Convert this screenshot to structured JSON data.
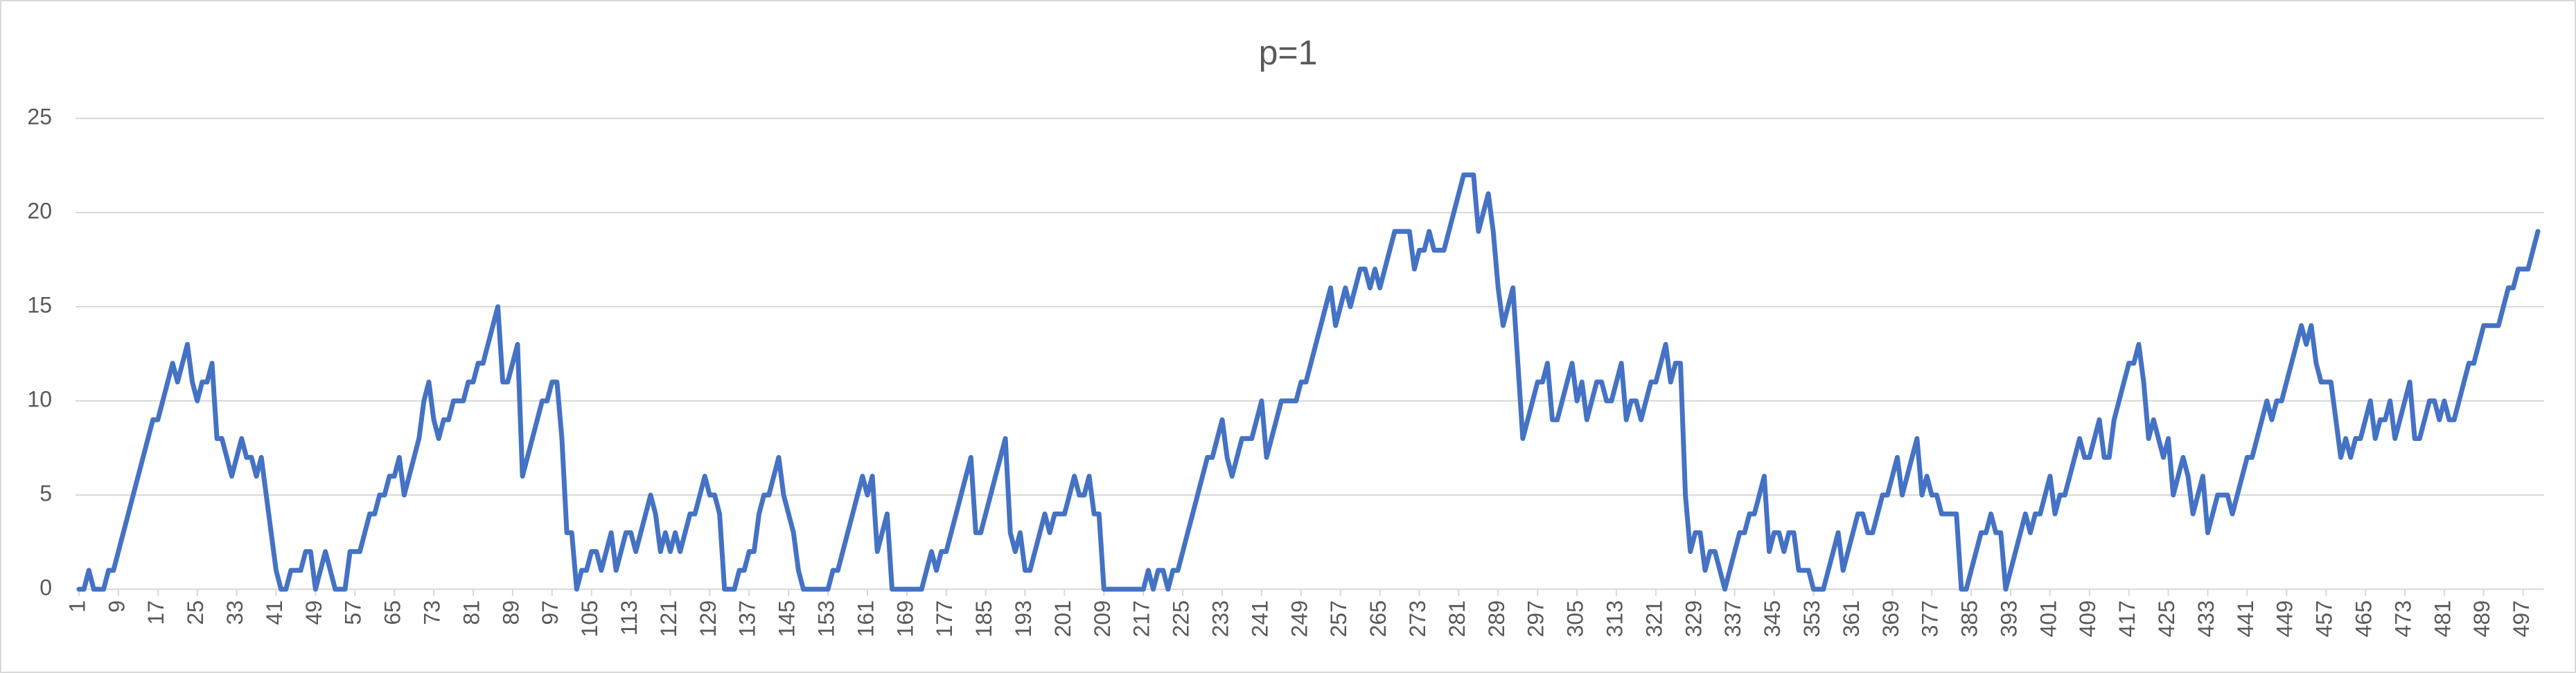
{
  "chart_data": {
    "type": "line",
    "title": "p=1",
    "x": [
      1,
      2,
      3,
      4,
      5,
      6,
      7,
      8,
      9,
      10,
      11,
      12,
      13,
      14,
      15,
      16,
      17,
      18,
      19,
      20,
      21,
      22,
      23,
      24,
      25,
      26,
      27,
      28,
      29,
      30,
      31,
      32,
      33,
      34,
      35,
      36,
      37,
      38,
      39,
      40,
      41,
      42,
      43,
      44,
      45,
      46,
      47,
      48,
      49,
      50,
      51,
      52,
      53,
      54,
      55,
      56,
      57,
      58,
      59,
      60,
      61,
      62,
      63,
      64,
      65,
      66,
      67,
      68,
      69,
      70,
      71,
      72,
      73,
      74,
      75,
      76,
      77,
      78,
      79,
      80,
      81,
      82,
      83,
      84,
      85,
      86,
      87,
      88,
      89,
      90,
      91,
      92,
      93,
      94,
      95,
      96,
      97,
      98,
      99,
      100,
      101,
      102,
      103,
      104,
      105,
      106,
      107,
      108,
      109,
      110,
      111,
      112,
      113,
      114,
      115,
      116,
      117,
      118,
      119,
      120,
      121,
      122,
      123,
      124,
      125,
      126,
      127,
      128,
      129,
      130,
      131,
      132,
      133,
      134,
      135,
      136,
      137,
      138,
      139,
      140,
      141,
      142,
      143,
      144,
      145,
      146,
      147,
      148,
      149,
      150,
      151,
      152,
      153,
      154,
      155,
      156,
      157,
      158,
      159,
      160,
      161,
      162,
      163,
      164,
      165,
      166,
      167,
      168,
      169,
      170,
      171,
      172,
      173,
      174,
      175,
      176,
      177,
      178,
      179,
      180,
      181,
      182,
      183,
      184,
      185,
      186,
      187,
      188,
      189,
      190,
      191,
      192,
      193,
      194,
      195,
      196,
      197,
      198,
      199,
      200,
      201,
      202,
      203,
      204,
      205,
      206,
      207,
      208,
      209,
      210,
      211,
      212,
      213,
      214,
      215,
      216,
      217,
      218,
      219,
      220,
      221,
      222,
      223,
      224,
      225,
      226,
      227,
      228,
      229,
      230,
      231,
      232,
      233,
      234,
      235,
      236,
      237,
      238,
      239,
      240,
      241,
      242,
      243,
      244,
      245,
      246,
      247,
      248,
      249,
      250,
      251,
      252,
      253,
      254,
      255,
      256,
      257,
      258,
      259,
      260,
      261,
      262,
      263,
      264,
      265,
      266,
      267,
      268,
      269,
      270,
      271,
      272,
      273,
      274,
      275,
      276,
      277,
      278,
      279,
      280,
      281,
      282,
      283,
      284,
      285,
      286,
      287,
      288,
      289,
      290,
      291,
      292,
      293,
      294,
      295,
      296,
      297,
      298,
      299,
      300,
      301,
      302,
      303,
      304,
      305,
      306,
      307,
      308,
      309,
      310,
      311,
      312,
      313,
      314,
      315,
      316,
      317,
      318,
      319,
      320,
      321,
      322,
      323,
      324,
      325,
      326,
      327,
      328,
      329,
      330,
      331,
      332,
      333,
      334,
      335,
      336,
      337,
      338,
      339,
      340,
      341,
      342,
      343,
      344,
      345,
      346,
      347,
      348,
      349,
      350,
      351,
      352,
      353,
      354,
      355,
      356,
      357,
      358,
      359,
      360,
      361,
      362,
      363,
      364,
      365,
      366,
      367,
      368,
      369,
      370,
      371,
      372,
      373,
      374,
      375,
      376,
      377,
      378,
      379,
      380,
      381,
      382,
      383,
      384,
      385,
      386,
      387,
      388,
      389,
      390,
      391,
      392,
      393,
      394,
      395,
      396,
      397,
      398,
      399,
      400,
      401,
      402,
      403,
      404,
      405,
      406,
      407,
      408,
      409,
      410,
      411,
      412,
      413,
      414,
      415,
      416,
      417,
      418,
      419,
      420,
      421,
      422,
      423,
      424,
      425,
      426,
      427,
      428,
      429,
      430,
      431,
      432,
      433,
      434,
      435,
      436,
      437,
      438,
      439,
      440,
      441,
      442,
      443,
      444,
      445,
      446,
      447,
      448,
      449,
      450,
      451,
      452,
      453,
      454,
      455,
      456,
      457,
      458,
      459,
      460,
      461,
      462,
      463,
      464,
      465,
      466,
      467,
      468,
      469,
      470,
      471,
      472,
      473,
      474,
      475,
      476,
      477,
      478,
      479,
      480,
      481,
      482,
      483,
      484,
      485,
      486,
      487,
      488,
      489,
      490,
      491,
      492,
      493,
      494,
      495,
      496,
      497,
      498,
      499,
      500
    ],
    "values": [
      0,
      0,
      1,
      0,
      0,
      0,
      1,
      1,
      2,
      3,
      4,
      5,
      6,
      7,
      8,
      9,
      9,
      10,
      11,
      12,
      11,
      12,
      13,
      11,
      10,
      11,
      11,
      12,
      8,
      8,
      7,
      6,
      7,
      8,
      7,
      7,
      6,
      7,
      5,
      3,
      1,
      0,
      0,
      1,
      1,
      1,
      2,
      2,
      0,
      1,
      2,
      1,
      0,
      0,
      0,
      2,
      2,
      2,
      3,
      4,
      4,
      5,
      5,
      6,
      6,
      7,
      5,
      6,
      7,
      8,
      10,
      11,
      9,
      8,
      9,
      9,
      10,
      10,
      10,
      11,
      11,
      12,
      12,
      13,
      14,
      15,
      11,
      11,
      12,
      13,
      6,
      7,
      8,
      9,
      10,
      10,
      11,
      11,
      8,
      3,
      3,
      0,
      1,
      1,
      2,
      2,
      1,
      2,
      3,
      1,
      2,
      3,
      3,
      2,
      3,
      4,
      5,
      4,
      2,
      3,
      2,
      3,
      2,
      3,
      4,
      4,
      5,
      6,
      5,
      5,
      4,
      0,
      0,
      0,
      1,
      1,
      2,
      2,
      4,
      5,
      5,
      6,
      7,
      5,
      4,
      3,
      1,
      0,
      0,
      0,
      0,
      0,
      0,
      1,
      1,
      2,
      3,
      4,
      5,
      6,
      5,
      6,
      2,
      3,
      4,
      0,
      0,
      0,
      0,
      0,
      0,
      0,
      1,
      2,
      1,
      2,
      2,
      3,
      4,
      5,
      6,
      7,
      3,
      3,
      4,
      5,
      6,
      7,
      8,
      3,
      2,
      3,
      1,
      1,
      2,
      3,
      4,
      3,
      4,
      4,
      4,
      5,
      6,
      5,
      5,
      6,
      4,
      4,
      0,
      0,
      0,
      0,
      0,
      0,
      0,
      0,
      0,
      1,
      0,
      1,
      1,
      0,
      1,
      1,
      2,
      3,
      4,
      5,
      6,
      7,
      7,
      8,
      9,
      7,
      6,
      7,
      8,
      8,
      8,
      9,
      10,
      7,
      8,
      9,
      10,
      10,
      10,
      10,
      11,
      11,
      12,
      13,
      14,
      15,
      16,
      14,
      15,
      16,
      15,
      16,
      17,
      17,
      16,
      17,
      16,
      17,
      18,
      19,
      19,
      19,
      19,
      17,
      18,
      18,
      19,
      18,
      18,
      18,
      19,
      20,
      21,
      22,
      22,
      22,
      19,
      20,
      21,
      19,
      16,
      14,
      15,
      16,
      12,
      8,
      9,
      10,
      11,
      11,
      12,
      9,
      9,
      10,
      11,
      12,
      10,
      11,
      9,
      10,
      11,
      11,
      10,
      10,
      11,
      12,
      9,
      10,
      10,
      9,
      10,
      11,
      11,
      12,
      13,
      11,
      12,
      12,
      5,
      2,
      3,
      3,
      1,
      2,
      2,
      1,
      0,
      1,
      2,
      3,
      3,
      4,
      4,
      5,
      6,
      2,
      3,
      3,
      2,
      3,
      3,
      1,
      1,
      1,
      0,
      0,
      0,
      1,
      2,
      3,
      1,
      2,
      3,
      4,
      4,
      3,
      3,
      4,
      5,
      5,
      6,
      7,
      5,
      6,
      7,
      8,
      5,
      6,
      5,
      5,
      4,
      4,
      4,
      4,
      0,
      0,
      1,
      2,
      3,
      3,
      4,
      3,
      3,
      0,
      1,
      2,
      3,
      4,
      3,
      4,
      4,
      5,
      6,
      4,
      5,
      5,
      6,
      7,
      8,
      7,
      7,
      8,
      9,
      7,
      7,
      9,
      10,
      11,
      12,
      12,
      13,
      11,
      8,
      9,
      8,
      7,
      8,
      5,
      6,
      7,
      6,
      4,
      5,
      6,
      3,
      4,
      5,
      5,
      5,
      4,
      5,
      6,
      7,
      7,
      8,
      9,
      10,
      9,
      10,
      10,
      11,
      12,
      13,
      14,
      13,
      14,
      12,
      11,
      11,
      11,
      9,
      7,
      8,
      7,
      8,
      8,
      9,
      10,
      8,
      9,
      9,
      10,
      8,
      9,
      10,
      11,
      8,
      8,
      9,
      10,
      10,
      9,
      10,
      9,
      9,
      10,
      11,
      12,
      12,
      13,
      14,
      14,
      14,
      14,
      15,
      16,
      16,
      17,
      17,
      17,
      18,
      19
    ],
    "color": "#4472c4",
    "xlim": [
      1,
      500
    ],
    "xticks": [
      1,
      9,
      17,
      25,
      33,
      41,
      49,
      57,
      65,
      73,
      81,
      89,
      97,
      105,
      113,
      121,
      129,
      137,
      145,
      153,
      161,
      169,
      177,
      185,
      193,
      201,
      209,
      217,
      225,
      233,
      241,
      249,
      257,
      265,
      273,
      281,
      289,
      297,
      305,
      313,
      321,
      329,
      337,
      345,
      353,
      361,
      369,
      377,
      385,
      393,
      401,
      409,
      417,
      425,
      433,
      441,
      449,
      457,
      465,
      473,
      481,
      489,
      497
    ],
    "ylim": [
      0,
      25
    ],
    "yticks": [
      0,
      5,
      10,
      15,
      20,
      25
    ],
    "grid": true
  }
}
